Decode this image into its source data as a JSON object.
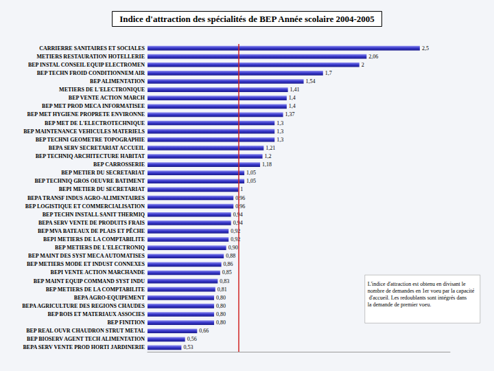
{
  "chart_data": {
    "type": "bar",
    "title": "Indice d'attraction des spécialités de BEP Année scolaire 2004-2005",
    "orientation": "horizontal",
    "categories": [
      "CARRIERRE SANITAIRES ET SOCIALES",
      "METIERS RESTAURATION HOTELLERIE",
      "BEP INSTAL CONSEIL EQUIP ELECTROMEN",
      "BEP TECHN FROID CONDITIONNEM AIR",
      "BEP ALIMENTATION",
      "METIERS DE L'ELECTRONIQUE",
      "BEP VENTE ACTION MARCH",
      "BEP MET PROD MECA INFORMATISEE",
      "BEP MET HYGIENE PROPRETE ENVIRONNE",
      "BEP MET DE L'ELECTROTECHNIQUE",
      "BEP MAINTENANCE VEHICULES MATERIELS",
      "BEP TECHNI GEOMETRE TOPOGRAPHIE",
      "BEPA SERV SECRETARIAT ACCUEIL",
      "BEP TECHNIQ ARCHITECTURE HABITAT",
      "BEP CARROSSERIE",
      "BEP METIER DU SECRETARIAT",
      "BEP TECHNIQ GROS OEUVRE BATIMENT",
      "BEPI METIER DU SECRETARIAT",
      "BEPA TRANSF INDUS AGRO-ALIMENTAIRES",
      "BEP LOGISTIQUE ET COMMERCIALISATION",
      "BEP TECHN INSTALL SANIT THERMIQ",
      "BEPA SERV VENTE DE PRODUITS FRAIS",
      "BEP MVA BATEAUX DE PLAIS ET PÊCHE",
      "BEPI METIERS DE LA COMPTABILITE",
      "BEP METIERS DE L'ELECTRONIQ",
      "BEP MAINT DES SYST MECA AUTOMATISES",
      "BEP METIERS MODE ET INDUST CONNEXES",
      "BEPI VENTE ACTION MARCHANDE",
      "BEP MAINT EQUIP COMMAND SYST INDU",
      "BEP METIERS DE LA COMPTABILITE",
      "BEPA AGRO-EQUIPEMENT",
      "BEPA AGRICULTURE DES REGIONS CHAUDES",
      "BEP BOIS ET MATERIAUX ASSOCIES",
      "BEP FINITION",
      "BEP REAL OUVR CHAUDRON STRUT METAL",
      "BEP BIOSERV AGENT TECH ALIMENTATION",
      "BEPA SERV VENTE PROD HORTI JARDINERIE"
    ],
    "values": [
      2.5,
      2.06,
      2,
      1.7,
      1.54,
      1.41,
      1.4,
      1.4,
      1.37,
      1.3,
      1.3,
      1.3,
      1.21,
      1.2,
      1.18,
      1.05,
      1.05,
      1,
      0.96,
      0.96,
      0.94,
      0.94,
      0.92,
      0.92,
      0.9,
      0.88,
      0.86,
      0.85,
      0.83,
      0.81,
      0.8,
      0.8,
      0.8,
      0.8,
      0.66,
      0.56,
      0.53
    ],
    "value_labels": [
      "2,5",
      "2,06",
      "2",
      "1,7",
      "1,54",
      "1,41",
      "1,4",
      "1,4",
      "1,37",
      "1,3",
      "1,3",
      "1,3",
      "1,21",
      "1,2",
      "1,18",
      "1,05",
      "1,05",
      "1",
      "0,96",
      "0,96",
      "0,94",
      "0,94",
      "0,92",
      "0,92",
      "0,90",
      "0,88",
      "0,86",
      "0,85",
      "0,83",
      "0,81",
      "0,80",
      "0,80",
      "0,80",
      "0,80",
      "0,66",
      "0,56",
      "0,53"
    ],
    "data_labels": true,
    "color": "#3535c8",
    "xlim": [
      0.25,
      2.75
    ],
    "reference_line": 1,
    "grid": false,
    "tick_labels": "y",
    "annotation": "L'indice d'attraction est obtenu en divisant le nombre de demandes en 1er voeu par la capacité d'accueil. Les redoublants sont intégrés dans la demande de premier voeu."
  }
}
